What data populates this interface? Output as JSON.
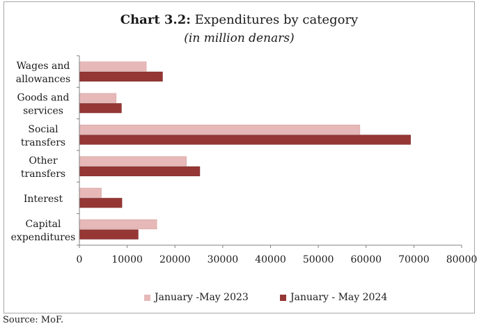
{
  "chart_data": {
    "type": "bar",
    "orientation": "horizontal",
    "title_bold": "Chart 3.2:",
    "title_rest": " Expenditures by category",
    "subtitle": "(in million denars)",
    "categories": [
      [
        "Wages and",
        "allowances"
      ],
      [
        "Goods and",
        "services"
      ],
      [
        "Social",
        "transfers"
      ],
      [
        "Other",
        "transfers"
      ],
      [
        "Interest"
      ],
      [
        "Capital",
        "expenditures"
      ]
    ],
    "category_names": [
      "Wages and allowances",
      "Goods and services",
      "Social transfers",
      "Other transfers",
      "Interest",
      "Capital expenditures"
    ],
    "series": [
      {
        "name": "January -May 2023",
        "color": "#e6b9b8",
        "values": [
          14000,
          7700,
          58700,
          22400,
          4600,
          16200
        ]
      },
      {
        "name": "January - May 2024",
        "color": "#953735",
        "values": [
          17400,
          8800,
          69300,
          25200,
          8900,
          12300
        ]
      }
    ],
    "xlim": [
      0,
      80000
    ],
    "xticks": [
      0,
      10000,
      20000,
      30000,
      40000,
      50000,
      60000,
      70000,
      80000
    ],
    "grid": false,
    "legend_position": "bottom"
  },
  "source": "Source: MoF."
}
